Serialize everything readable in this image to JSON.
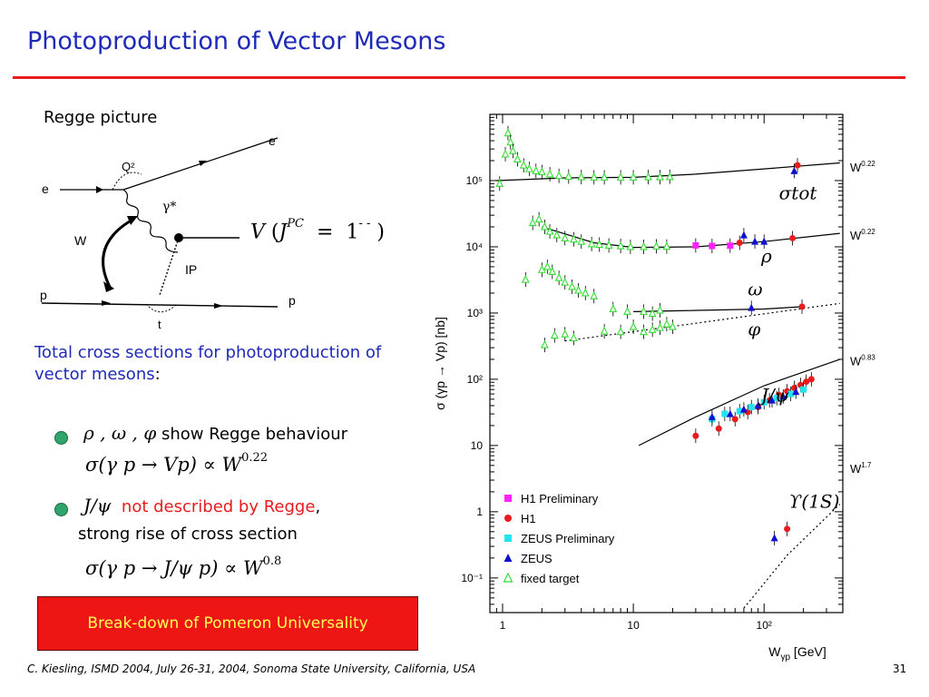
{
  "slide": {
    "title": "Photoproduction of Vector Mesons",
    "regge_label": "Regge picture",
    "diagram_labels": {
      "e_out": "e",
      "e_in": "e",
      "q2": "Q²",
      "gamma": "γ*",
      "w": "W",
      "pomeron": "IP",
      "p_in": "p",
      "p_out": "p",
      "t": "t"
    },
    "vjpc": {
      "V": "V",
      "J": "J",
      "PC": "PC",
      "eq": "=",
      "value": "1",
      "minus": "- -"
    },
    "total_text": "Total cross sections for photoproduction of vector mesons",
    "total_colon": ":",
    "bullet1_greek": "ρ , ω , φ",
    "bullet1_text": "show Regge behaviour",
    "formula1_main": "σ(γ p → Vp) ∝ W",
    "formula1_exp": "0.22",
    "bullet2_greek": "J/ψ",
    "bullet2_red": "not described by Regge",
    "bullet2_comma": ",",
    "bullet2_line2": "strong rise of cross section",
    "formula2_main": "σ(γ p → J/ψ p) ∝ W",
    "formula2_exp": "0.8",
    "redbox": "Break-down of Pomeron Universality",
    "footer": "C. Kiesling, ISMD 2004, July 26-31, 2004, Sonoma State University, California, USA",
    "page_number": "31",
    "colors": {
      "title": "#1f2bb8",
      "rule": "#e81c1c",
      "bullet": "#2fa56b",
      "box": "#ee1515",
      "box_text": "#ffff55"
    }
  },
  "chart_data": {
    "type": "scatter",
    "xlabel": "W",
    "xlabel_sub": "γp",
    "xlabel_unit": "[GeV]",
    "ylabel": "σ (γp → Vp) [nb]",
    "xscale": "log",
    "yscale": "log",
    "xlim": [
      0.8,
      400
    ],
    "ylim": [
      0.03,
      1000000
    ],
    "x_ticks": [
      {
        "value": 1,
        "label": "1"
      },
      {
        "value": 10,
        "label": "10"
      },
      {
        "value": 100,
        "label": "10²"
      }
    ],
    "y_ticks": [
      {
        "value": 0.1,
        "label": "10⁻¹"
      },
      {
        "value": 1,
        "label": "1"
      },
      {
        "value": 10,
        "label": "10"
      },
      {
        "value": 100,
        "label": "10²"
      },
      {
        "value": 1000,
        "label": "10³"
      },
      {
        "value": 10000,
        "label": "10⁴"
      },
      {
        "value": 100000,
        "label": "10⁵"
      }
    ],
    "curve_labels": [
      {
        "text": "σtot",
        "x": 130,
        "y": 52000
      },
      {
        "text": "ρ",
        "x": 95,
        "y": 5800
      },
      {
        "text": "ω",
        "x": 75,
        "y": 1850
      },
      {
        "text": "φ",
        "x": 75,
        "y": 460
      },
      {
        "text": "J/ψ",
        "x": 95,
        "y": 46
      },
      {
        "text": "ϒ(1S)",
        "x": 155,
        "y": 1.15
      }
    ],
    "power_labels": [
      {
        "text": "W",
        "exp": "0.22",
        "y": 160000
      },
      {
        "text": "W",
        "exp": "0.22",
        "y": 15000
      },
      {
        "text": "W",
        "exp": "0.83",
        "y": 190
      },
      {
        "text": "W",
        "exp": "1.7",
        "y": 4.5
      }
    ],
    "legend": [
      {
        "label": "H1 Preliminary",
        "marker": "square",
        "color": "#ff22ff"
      },
      {
        "label": "H1",
        "marker": "circle",
        "color": "#e81c1c"
      },
      {
        "label": "ZEUS Preliminary",
        "marker": "square",
        "color": "#22e4ee"
      },
      {
        "label": "ZEUS",
        "marker": "triangle",
        "color": "#1010d0"
      },
      {
        "label": "fixed target",
        "marker": "open-triangle",
        "color": "#33dd33"
      }
    ],
    "fits": [
      {
        "name": "tot",
        "style": "solid",
        "points": [
          [
            0.9,
            100000
          ],
          [
            3,
            110000
          ],
          [
            10,
            112000
          ],
          [
            30,
            125000
          ],
          [
            100,
            150000
          ],
          [
            380,
            185000
          ]
        ]
      },
      {
        "name": "rho",
        "style": "solid",
        "points": [
          [
            2,
            20000
          ],
          [
            5,
            11500
          ],
          [
            10,
            9800
          ],
          [
            30,
            10000
          ],
          [
            100,
            12000
          ],
          [
            380,
            16000
          ]
        ]
      },
      {
        "name": "omega",
        "style": "solid",
        "points": [
          [
            10,
            1050
          ],
          [
            100,
            1150
          ],
          [
            200,
            1250
          ]
        ]
      },
      {
        "name": "phi",
        "style": "dotted",
        "points": [
          [
            3,
            380
          ],
          [
            30,
            700
          ],
          [
            380,
            1400
          ]
        ]
      },
      {
        "name": "jpsi",
        "style": "solid",
        "points": [
          [
            11,
            10
          ],
          [
            30,
            27
          ],
          [
            100,
            80
          ],
          [
            380,
            200
          ]
        ]
      },
      {
        "name": "upsilon",
        "style": "dotted",
        "points": [
          [
            70,
            0.035
          ],
          [
            150,
            0.22
          ],
          [
            380,
            1.3
          ]
        ]
      }
    ],
    "series": [
      {
        "name": "fixed target",
        "marker": "open-triangle",
        "color": "#33dd33",
        "points": [
          [
            0.95,
            90000
          ],
          [
            1.05,
            250000
          ],
          [
            1.1,
            520000
          ],
          [
            1.15,
            380000
          ],
          [
            1.2,
            280000
          ],
          [
            1.3,
            210000
          ],
          [
            1.45,
            170000
          ],
          [
            1.6,
            150000
          ],
          [
            1.8,
            140000
          ],
          [
            2,
            135000
          ],
          [
            2.3,
            125000
          ],
          [
            2.7,
            118000
          ],
          [
            3.2,
            115000
          ],
          [
            4,
            113000
          ],
          [
            5,
            112000
          ],
          [
            6,
            112000
          ],
          [
            8,
            112000
          ],
          [
            10,
            112000
          ],
          [
            13,
            113000
          ],
          [
            16,
            113000
          ],
          [
            19,
            114000
          ],
          [
            1.7,
            23000
          ],
          [
            1.9,
            26000
          ],
          [
            2.1,
            20000
          ],
          [
            2.3,
            17000
          ],
          [
            2.6,
            15000
          ],
          [
            3,
            13500
          ],
          [
            3.5,
            13000
          ],
          [
            4,
            12000
          ],
          [
            4.8,
            11000
          ],
          [
            5.5,
            10800
          ],
          [
            6.5,
            10500
          ],
          [
            8,
            10300
          ],
          [
            9.5,
            10000
          ],
          [
            12,
            10000
          ],
          [
            15,
            10200
          ],
          [
            18,
            10100
          ],
          [
            2.2,
            5000
          ],
          [
            2.4,
            4200
          ],
          [
            2.7,
            3400
          ],
          [
            3,
            2900
          ],
          [
            3.4,
            2500
          ],
          [
            3.8,
            2200
          ],
          [
            4.3,
            2000
          ],
          [
            5,
            1800
          ],
          [
            1.5,
            3200
          ],
          [
            2,
            4500
          ],
          [
            7,
            1150
          ],
          [
            9,
            1050
          ],
          [
            12,
            1050
          ],
          [
            14,
            980
          ],
          [
            16,
            1100
          ],
          [
            2.1,
            330
          ],
          [
            2.5,
            460
          ],
          [
            3,
            480
          ],
          [
            3.5,
            420
          ],
          [
            6,
            530
          ],
          [
            8,
            520
          ],
          [
            10,
            620
          ],
          [
            12,
            520
          ],
          [
            14,
            560
          ],
          [
            16,
            600
          ],
          [
            18,
            680
          ],
          [
            20,
            620
          ]
        ]
      },
      {
        "name": "H1 Preliminary",
        "marker": "square",
        "color": "#ff22ff",
        "points": [
          [
            30,
            10500
          ],
          [
            40,
            10300
          ],
          [
            55,
            10400
          ]
        ]
      },
      {
        "name": "H1",
        "marker": "circle",
        "color": "#e81c1c",
        "points": [
          [
            180,
            170000
          ],
          [
            65,
            11500
          ],
          [
            165,
            13500
          ],
          [
            195,
            1250
          ],
          [
            30,
            14
          ],
          [
            45,
            18
          ],
          [
            60,
            25
          ],
          [
            75,
            32
          ],
          [
            90,
            38
          ],
          [
            110,
            48
          ],
          [
            130,
            58
          ],
          [
            150,
            66
          ],
          [
            170,
            74
          ],
          [
            190,
            82
          ],
          [
            210,
            92
          ],
          [
            230,
            100
          ],
          [
            150,
            0.55
          ]
        ]
      },
      {
        "name": "ZEUS Preliminary",
        "marker": "square",
        "color": "#22e4ee",
        "points": [
          [
            40,
            25
          ],
          [
            50,
            30
          ],
          [
            65,
            33
          ],
          [
            80,
            38
          ],
          [
            100,
            45
          ],
          [
            125,
            52
          ],
          [
            160,
            60
          ],
          [
            200,
            70
          ]
        ]
      },
      {
        "name": "ZEUS",
        "marker": "triangle",
        "color": "#1010d0",
        "points": [
          [
            170,
            140000
          ],
          [
            70,
            15000
          ],
          [
            85,
            12000
          ],
          [
            100,
            12000
          ],
          [
            80,
            1200
          ],
          [
            40,
            27
          ],
          [
            55,
            30
          ],
          [
            70,
            35
          ],
          [
            90,
            40
          ],
          [
            115,
            48
          ],
          [
            140,
            55
          ],
          [
            175,
            65
          ],
          [
            120,
            0.4
          ]
        ]
      }
    ]
  }
}
